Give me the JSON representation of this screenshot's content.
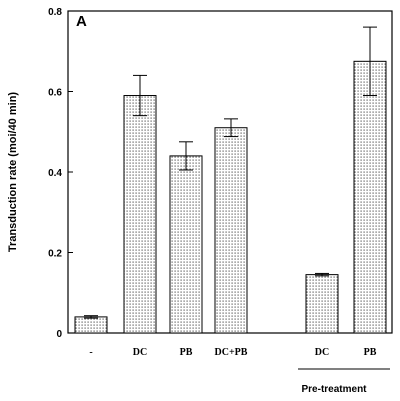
{
  "chart_data": {
    "type": "bar",
    "panel_label": "A",
    "ylabel": "Transduction rate (moi/40 min)",
    "ylim": [
      0,
      0.8
    ],
    "yticks": [
      "0",
      "0.2",
      "0.4",
      "0.6",
      "0.8"
    ],
    "categories": [
      "-",
      "DC",
      "PB",
      "DC+PB",
      "DC",
      "PB"
    ],
    "values": [
      0.04,
      0.59,
      0.44,
      0.51,
      0.145,
      0.675
    ],
    "errors": [
      0.003,
      0.05,
      0.035,
      0.022,
      0.003,
      0.085
    ],
    "group_label": "Pre-treatment",
    "fill": "#dcdcdc",
    "stroke": "#000000"
  }
}
